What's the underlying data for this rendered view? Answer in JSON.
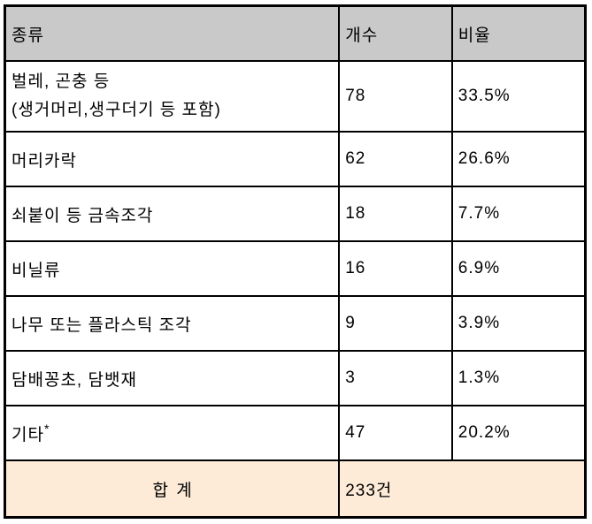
{
  "table": {
    "columns": [
      {
        "label": "종류"
      },
      {
        "label": "개수"
      },
      {
        "label": "비율"
      }
    ],
    "rows": [
      {
        "type_lines": [
          "벌레, 곤충 등",
          "(생거머리,생구더기 등 포함)"
        ],
        "count": "78",
        "ratio": "33.5%"
      },
      {
        "type": "머리카락",
        "count": "62",
        "ratio": "26.6%"
      },
      {
        "type": "쇠붙이 등 금속조각",
        "count": "18",
        "ratio": "7.7%"
      },
      {
        "type": "비닐류",
        "count": "16",
        "ratio": "6.9%"
      },
      {
        "type": "나무 또는 플라스틱 조각",
        "count": "9",
        "ratio": "3.9%"
      },
      {
        "type": "담배꽁초, 담뱃재",
        "count": "3",
        "ratio": "1.3%"
      },
      {
        "type": "기타",
        "note_mark": "*",
        "count": "47",
        "ratio": "20.2%"
      }
    ],
    "total": {
      "label": "합 계",
      "value": "233건"
    },
    "colors": {
      "header_bg": "#c9c9c9",
      "total_bg": "#fdead7",
      "border": "#000000",
      "text": "#000000"
    }
  },
  "chart_data": {
    "type": "table",
    "title": "",
    "columns": [
      "종류",
      "개수",
      "비율"
    ],
    "categories": [
      "벌레, 곤충 등 (생거머리,생구더기 등 포함)",
      "머리카락",
      "쇠붙이 등 금속조각",
      "비닐류",
      "나무 또는 플라스틱 조각",
      "담배꽁초, 담뱃재",
      "기타*"
    ],
    "counts": [
      78,
      62,
      18,
      16,
      9,
      3,
      47
    ],
    "ratios_percent": [
      33.5,
      26.6,
      7.7,
      6.9,
      3.9,
      1.3,
      20.2
    ],
    "total_label": "합 계",
    "total_value": "233건"
  }
}
